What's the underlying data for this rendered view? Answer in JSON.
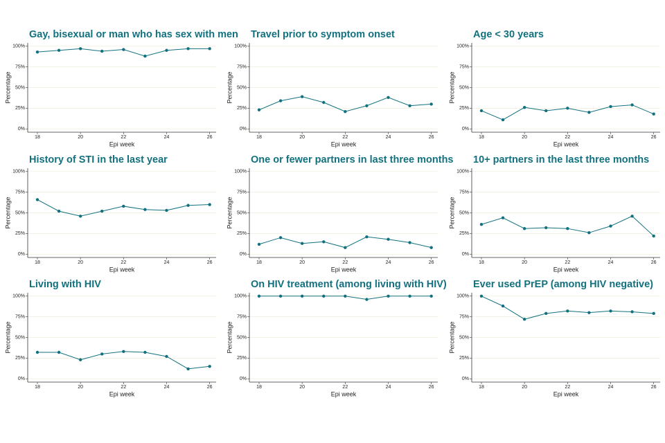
{
  "chart_data": [
    {
      "type": "line",
      "title": "Gay, bisexual or man who has sex with men",
      "x": [
        18,
        19,
        20,
        21,
        22,
        23,
        24,
        25,
        26
      ],
      "values": [
        93,
        95,
        97,
        94,
        96,
        88,
        95,
        97,
        97
      ],
      "color": "#12717f",
      "xlabel": "Epi week",
      "ylabel": "Percentage",
      "xlim": [
        17.55,
        26.3
      ],
      "xticks": [
        18,
        20,
        22,
        24,
        26
      ],
      "ylim": [
        -4,
        104
      ],
      "yticks": [
        {
          "value": 0,
          "label": "0%"
        },
        {
          "value": 25,
          "label": "25%"
        },
        {
          "value": 50,
          "label": "50%"
        },
        {
          "value": 75,
          "label": "75%"
        },
        {
          "value": 100,
          "label": "100%"
        }
      ],
      "grid": true
    },
    {
      "type": "line",
      "title": "Travel prior to symptom onset",
      "x": [
        18,
        19,
        20,
        21,
        22,
        23,
        24,
        25,
        26
      ],
      "values": [
        23,
        34,
        39,
        32,
        21,
        28,
        38,
        28,
        30
      ],
      "color": "#12717f",
      "xlabel": "Epi week",
      "ylabel": "Percentage",
      "xlim": [
        17.55,
        26.3
      ],
      "xticks": [
        18,
        20,
        22,
        24,
        26
      ],
      "ylim": [
        -4,
        104
      ],
      "yticks": [
        {
          "value": 0,
          "label": "0%"
        },
        {
          "value": 25,
          "label": "25%"
        },
        {
          "value": 50,
          "label": "50%"
        },
        {
          "value": 75,
          "label": "75%"
        },
        {
          "value": 100,
          "label": "100%"
        }
      ],
      "grid": true
    },
    {
      "type": "line",
      "title": "Age < 30 years",
      "x": [
        18,
        19,
        20,
        21,
        22,
        23,
        24,
        25,
        26
      ],
      "values": [
        22,
        11,
        26,
        22,
        25,
        20,
        27,
        29,
        18
      ],
      "color": "#12717f",
      "xlabel": "Epi week",
      "ylabel": "Percentage",
      "xlim": [
        17.55,
        26.3
      ],
      "xticks": [
        18,
        20,
        22,
        24,
        26
      ],
      "ylim": [
        -4,
        104
      ],
      "yticks": [
        {
          "value": 0,
          "label": "0%"
        },
        {
          "value": 25,
          "label": "25%"
        },
        {
          "value": 50,
          "label": "50%"
        },
        {
          "value": 75,
          "label": "75%"
        },
        {
          "value": 100,
          "label": "100%"
        }
      ],
      "grid": true
    },
    {
      "type": "line",
      "title": "History of STI in the last year",
      "x": [
        18,
        19,
        20,
        21,
        22,
        23,
        24,
        25,
        26
      ],
      "values": [
        66,
        52,
        46,
        52,
        58,
        54,
        53,
        59,
        60
      ],
      "color": "#12717f",
      "xlabel": "Epi week",
      "ylabel": "Percentage",
      "xlim": [
        17.55,
        26.3
      ],
      "xticks": [
        18,
        20,
        22,
        24,
        26
      ],
      "ylim": [
        -4,
        104
      ],
      "yticks": [
        {
          "value": 0,
          "label": "0%"
        },
        {
          "value": 25,
          "label": "25%"
        },
        {
          "value": 50,
          "label": "50%"
        },
        {
          "value": 75,
          "label": "75%"
        },
        {
          "value": 100,
          "label": "100%"
        }
      ],
      "grid": true
    },
    {
      "type": "line",
      "title": "One or fewer partners in last three months",
      "x": [
        18,
        19,
        20,
        21,
        22,
        23,
        24,
        25,
        26
      ],
      "values": [
        12,
        20,
        13,
        15,
        8,
        21,
        18,
        14,
        8
      ],
      "color": "#12717f",
      "xlabel": "Epi week",
      "ylabel": "Percentage",
      "xlim": [
        17.55,
        26.3
      ],
      "xticks": [
        18,
        20,
        22,
        24,
        26
      ],
      "ylim": [
        -4,
        104
      ],
      "yticks": [
        {
          "value": 0,
          "label": "0%"
        },
        {
          "value": 25,
          "label": "25%"
        },
        {
          "value": 50,
          "label": "50%"
        },
        {
          "value": 75,
          "label": "75%"
        },
        {
          "value": 100,
          "label": "100%"
        }
      ],
      "grid": true
    },
    {
      "type": "line",
      "title": "10+ partners in the last three months",
      "x": [
        18,
        19,
        20,
        21,
        22,
        23,
        24,
        25,
        26
      ],
      "values": [
        36,
        44,
        31,
        32,
        31,
        26,
        34,
        46,
        22
      ],
      "color": "#12717f",
      "xlabel": "Epi week",
      "ylabel": "Percentage",
      "xlim": [
        17.55,
        26.3
      ],
      "xticks": [
        18,
        20,
        22,
        24,
        26
      ],
      "ylim": [
        -4,
        104
      ],
      "yticks": [
        {
          "value": 0,
          "label": "0%"
        },
        {
          "value": 25,
          "label": "25%"
        },
        {
          "value": 50,
          "label": "50%"
        },
        {
          "value": 75,
          "label": "75%"
        },
        {
          "value": 100,
          "label": "100%"
        }
      ],
      "grid": true
    },
    {
      "type": "line",
      "title": "Living with HIV",
      "x": [
        18,
        19,
        20,
        21,
        22,
        23,
        24,
        25,
        26
      ],
      "values": [
        32,
        32,
        23,
        30,
        33,
        32,
        27,
        12,
        15
      ],
      "color": "#12717f",
      "xlabel": "Epi week",
      "ylabel": "Percentage",
      "xlim": [
        17.55,
        26.3
      ],
      "xticks": [
        18,
        20,
        22,
        24,
        26
      ],
      "ylim": [
        -4,
        104
      ],
      "yticks": [
        {
          "value": 0,
          "label": "0%"
        },
        {
          "value": 25,
          "label": "25%"
        },
        {
          "value": 50,
          "label": "50%"
        },
        {
          "value": 75,
          "label": "75%"
        },
        {
          "value": 100,
          "label": "100%"
        }
      ],
      "grid": true
    },
    {
      "type": "line",
      "title": "On HIV treatment (among living with HIV)",
      "x": [
        18,
        19,
        20,
        21,
        22,
        23,
        24,
        25,
        26
      ],
      "values": [
        100,
        100,
        100,
        100,
        100,
        96,
        100,
        100,
        100
      ],
      "color": "#12717f",
      "xlabel": "Epi week",
      "ylabel": "Percentage",
      "xlim": [
        17.55,
        26.3
      ],
      "xticks": [
        18,
        20,
        22,
        24,
        26
      ],
      "ylim": [
        -4,
        104
      ],
      "yticks": [
        {
          "value": 0,
          "label": "0%"
        },
        {
          "value": 25,
          "label": "25%"
        },
        {
          "value": 50,
          "label": "50%"
        },
        {
          "value": 75,
          "label": "75%"
        },
        {
          "value": 100,
          "label": "100%"
        }
      ],
      "grid": true
    },
    {
      "type": "line",
      "title": "Ever used PrEP (among HIV negative)",
      "x": [
        18,
        19,
        20,
        21,
        22,
        23,
        24,
        25,
        26
      ],
      "values": [
        100,
        88,
        72,
        79,
        82,
        80,
        82,
        81,
        79
      ],
      "color": "#12717f",
      "xlabel": "Epi week",
      "ylabel": "Percentage",
      "xlim": [
        17.55,
        26.3
      ],
      "xticks": [
        18,
        20,
        22,
        24,
        26
      ],
      "ylim": [
        -4,
        104
      ],
      "yticks": [
        {
          "value": 0,
          "label": "0%"
        },
        {
          "value": 25,
          "label": "25%"
        },
        {
          "value": 50,
          "label": "50%"
        },
        {
          "value": 75,
          "label": "75%"
        },
        {
          "value": 100,
          "label": "100%"
        }
      ],
      "grid": true
    }
  ]
}
